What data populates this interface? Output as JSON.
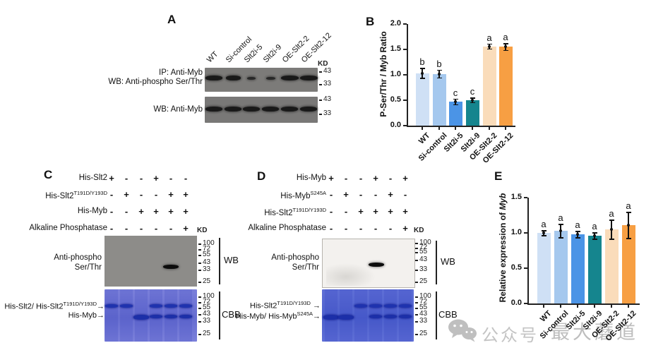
{
  "panels": {
    "a_label": "A",
    "b_label": "B",
    "c_label": "C",
    "d_label": "D",
    "e_label": "E"
  },
  "panel_a": {
    "lane_labels": [
      "WT",
      "Si-control",
      "Slt2i-5",
      "Slt2i-9",
      "OE-Slt2-2",
      "OE-Slt2-12"
    ],
    "kd": "KD",
    "blot1_label_line1": "IP: Anti-Myb",
    "blot1_label_line2": "WB: Anti-phospho Ser/Thr",
    "blot2_label": "WB: Anti-Myb",
    "blot1_markers": [
      "43",
      "33"
    ],
    "blot2_markers": [
      "43",
      "33"
    ],
    "blot1_band_strengths": [
      1,
      0.88,
      0.5,
      0.55,
      1.05,
      1.05
    ],
    "blot2_band_strengths": [
      1,
      1,
      1,
      1,
      1,
      1
    ]
  },
  "chart_data": [
    {
      "id": "panel_b",
      "type": "bar",
      "title": "",
      "ylabel": "P-Ser/Thr / Myb Ratio",
      "categories": [
        "WT",
        "Si-control",
        "Slt2i-5",
        "Slt2i-9",
        "OE-Slt2-2",
        "OE-Slt2-12"
      ],
      "values": [
        1.03,
        1.02,
        0.47,
        0.5,
        1.56,
        1.55
      ],
      "errors": [
        0.09,
        0.07,
        0.05,
        0.04,
        0.04,
        0.06
      ],
      "letters": [
        "b",
        "b",
        "c",
        "c",
        "a",
        "a"
      ],
      "bar_colors": [
        "#cfe0f5",
        "#a5c8ee",
        "#4b94e6",
        "#15858e",
        "#fadcba",
        "#f79f43"
      ],
      "ylim": [
        0,
        2.0
      ],
      "yticks": [
        "0.0",
        "0.5",
        "1.0",
        "1.5",
        "2.0"
      ],
      "grid": false,
      "legend": "none"
    },
    {
      "id": "panel_e",
      "type": "bar",
      "title": "",
      "ylabel_prefix": "Relative expression of ",
      "ylabel_italic": "Myb",
      "categories": [
        "WT",
        "Si-control",
        "Slt2i-5",
        "Slt2i-9",
        "OE-Slt2-2",
        "OE-Slt2-12"
      ],
      "values": [
        1.0,
        1.03,
        0.98,
        0.96,
        1.05,
        1.11
      ],
      "errors": [
        0.03,
        0.09,
        0.04,
        0.04,
        0.13,
        0.18
      ],
      "letters": [
        "a",
        "a",
        "a",
        "a",
        "a",
        "a"
      ],
      "bar_colors": [
        "#cfe0f5",
        "#a5c8ee",
        "#4b94e6",
        "#15858e",
        "#fadcba",
        "#f79f43"
      ],
      "ylim": [
        0,
        1.5
      ],
      "yticks": [
        "0.0",
        "0.5",
        "1.0",
        "1.5"
      ],
      "grid": false,
      "legend": "none"
    }
  ],
  "panel_c": {
    "conditions": [
      {
        "name": "His-Slt2",
        "sup": "",
        "symbols": [
          "+",
          "-",
          "-",
          "+",
          "-",
          "-"
        ]
      },
      {
        "name": "His-Slt2",
        "sup": "T191D/Y193D",
        "symbols": [
          "-",
          "+",
          "-",
          "-",
          "+",
          "+"
        ]
      },
      {
        "name": "His-Myb",
        "sup": "",
        "symbols": [
          "-",
          "-",
          "+",
          "+",
          "+",
          "+"
        ]
      },
      {
        "name": "Alkaline Phosphatase",
        "sup": "",
        "symbols": [
          "-",
          "-",
          "-",
          "-",
          "-",
          "+"
        ]
      }
    ],
    "kd": "KD",
    "wb_label_line1": "Anti-phospho",
    "wb_label_line2": "Ser/Thr",
    "wb_markers": [
      "100",
      "72",
      "55",
      "43",
      "33",
      "25"
    ],
    "cbb_markers": [
      "100",
      "72",
      "55",
      "43",
      "33",
      "25"
    ],
    "wb_side": "WB",
    "cbb_side": "CBB",
    "wb_band_lanes": [
      5
    ],
    "cbb_upper_lanes": [
      1,
      2,
      4,
      5,
      6
    ],
    "cbb_lower_lanes": [
      3,
      4,
      5,
      6
    ],
    "cbb_row1": {
      "main": "His-Slt2/ His-Slt2",
      "sup": "T191D/Y193D",
      "arrow": "→"
    },
    "cbb_row2": {
      "main": "His-Myb",
      "sup": "",
      "arrow": "→"
    }
  },
  "panel_d": {
    "conditions": [
      {
        "name": "His-Myb",
        "sup": "",
        "symbols": [
          "+",
          "-",
          "-",
          "+",
          "-",
          "+"
        ]
      },
      {
        "name": "His-Myb",
        "sup": "S245A",
        "symbols": [
          "-",
          "+",
          "-",
          "-",
          "+",
          "-"
        ]
      },
      {
        "name": "His-Slt2",
        "sup": "T191D/Y193D",
        "symbols": [
          "-",
          "-",
          "+",
          "+",
          "+",
          "+"
        ]
      },
      {
        "name": "Alkaline Phosphatase",
        "sup": "",
        "symbols": [
          "-",
          "-",
          "-",
          "-",
          "-",
          "+"
        ]
      }
    ],
    "kd": "KD",
    "wb_label_line1": "Anti-phospho",
    "wb_label_line2": "Ser/Thr",
    "wb_markers": [
      "100",
      "72",
      "55",
      "43",
      "33",
      "25"
    ],
    "cbb_markers": [
      "100",
      "72",
      "55",
      "43",
      "33",
      "25"
    ],
    "wb_side": "WB",
    "cbb_side": "CBB",
    "wb_band_lanes": [
      4
    ],
    "cbb_upper_lanes": [
      3,
      4,
      5,
      6
    ],
    "cbb_lower_lanes": [
      1,
      2,
      4,
      5,
      6
    ],
    "cbb_row1": {
      "main": "His-Slt2",
      "sup": "T191D/Y193D",
      "arrow": " →"
    },
    "cbb_row2": {
      "main": "His-Myb/ His-Myb",
      "sup": "S245A",
      "arrow": "→"
    }
  },
  "watermark": {
    "label": "公众号",
    "account": "最大蘑道"
  }
}
